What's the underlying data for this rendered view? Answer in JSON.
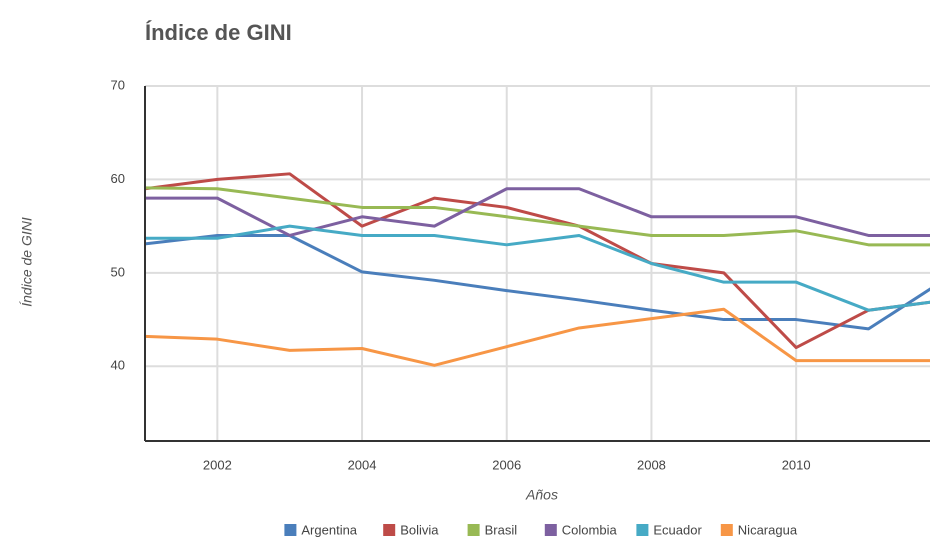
{
  "chart_data": {
    "type": "line",
    "title": "Índice de GINI",
    "x_label": "Años",
    "y_label": "Índice de GINI",
    "x": [
      2001,
      2002,
      2003,
      2004,
      2005,
      2006,
      2007,
      2008,
      2009,
      2010,
      2011,
      2012
    ],
    "xlim": [
      2001,
      2011.85
    ],
    "xticks": [
      2002,
      2004,
      2006,
      2008,
      2010
    ],
    "ylim": [
      32,
      70
    ],
    "yticks": [
      40,
      50,
      60,
      70
    ],
    "grid": true,
    "legend": "bottom",
    "series": [
      {
        "name": "Argentina",
        "color": "#4a7ebb",
        "values": [
          53.1,
          54,
          54,
          50.1,
          49.2,
          48.1,
          47.1,
          46,
          45,
          45,
          44,
          49
        ]
      },
      {
        "name": "Bolivia",
        "color": "#be4b48",
        "values": [
          59,
          60,
          60.6,
          55,
          58,
          57,
          55,
          51,
          50,
          42,
          46,
          47
        ]
      },
      {
        "name": "Brasil",
        "color": "#98b954",
        "values": [
          59.1,
          59,
          58,
          57,
          57,
          56,
          55,
          54,
          54,
          54.5,
          53,
          53
        ]
      },
      {
        "name": "Colombia",
        "color": "#7d60a0",
        "values": [
          58,
          58,
          54,
          56,
          55,
          59,
          59,
          56,
          56,
          56,
          54,
          54
        ]
      },
      {
        "name": "Ecuador",
        "color": "#46aac5",
        "values": [
          53.7,
          53.7,
          55,
          54,
          54,
          53,
          54,
          51,
          49,
          49,
          46,
          47
        ]
      },
      {
        "name": "Nicaragua",
        "color": "#f79646",
        "values": [
          43.2,
          42.9,
          41.7,
          41.9,
          40.1,
          42.1,
          44.1,
          45.1,
          46.1,
          40.6,
          40.6,
          40.6
        ]
      }
    ]
  }
}
